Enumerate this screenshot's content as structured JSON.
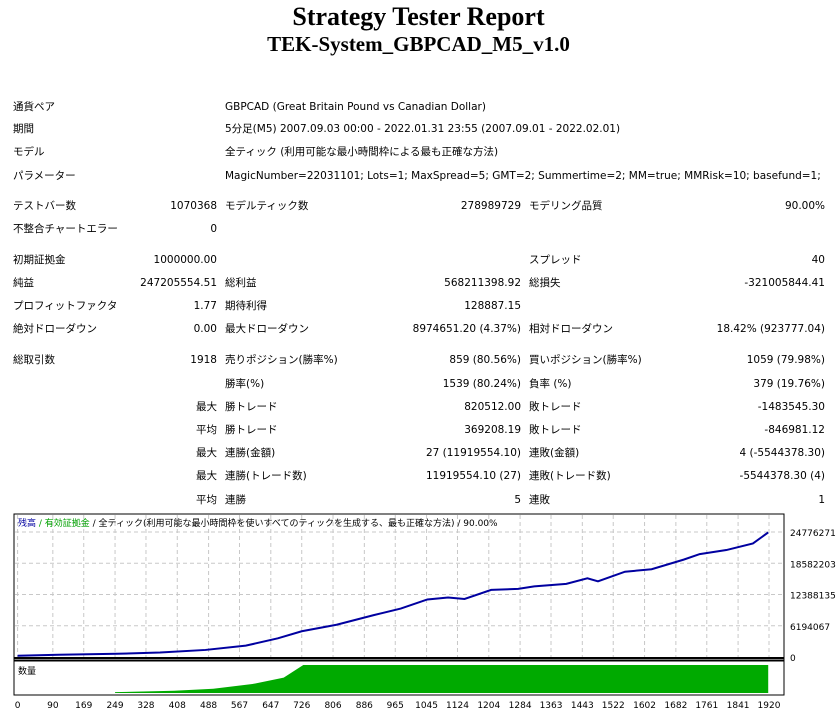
{
  "header": {
    "title": "Strategy Tester Report",
    "subtitle": "TEK-System_GBPCAD_M5_v1.0"
  },
  "info": [
    {
      "label": "通貨ペア",
      "value": "GBPCAD (Great Britain Pound vs Canadian Dollar)"
    },
    {
      "label": "期間",
      "value": "5分足(M5) 2007.09.03 00:00 - 2022.01.31 23:55 (2007.09.01 - 2022.02.01)"
    },
    {
      "label": "モデル",
      "value": "全ティック (利用可能な最小時間枠による最も正確な方法)"
    },
    {
      "label": "パラメーター",
      "value": "MagicNumber=22031101; Lots=1; MaxSpread=5; GMT=2; Summertime=2; MM=true; MMRisk=10; basefund=1;"
    }
  ],
  "stats": [
    [
      [
        "テストバー数",
        "1070368"
      ],
      [
        "モデルティック数",
        "278989729"
      ],
      [
        "モデリング品質",
        "90.00%"
      ]
    ],
    [
      [
        "不整合チャートエラー",
        "0"
      ],
      null,
      null
    ],
    [
      [
        "初期証拠金",
        "1000000.00"
      ],
      null,
      [
        "スプレッド",
        "40"
      ]
    ],
    [
      [
        "純益",
        "247205554.51"
      ],
      [
        "総利益",
        "568211398.92"
      ],
      [
        "総損失",
        "-321005844.41"
      ]
    ],
    [
      [
        "プロフィットファクタ",
        "1.77"
      ],
      [
        "期待利得",
        "128887.15"
      ],
      null
    ],
    [
      [
        "絶対ドローダウン",
        "0.00"
      ],
      [
        "最大ドローダウン",
        "8974651.20 (4.37%)"
      ],
      [
        "相対ドローダウン",
        "18.42% (923777.04)"
      ]
    ],
    [
      [
        "総取引数",
        "1918"
      ],
      [
        "売りポジション(勝率%)",
        "859 (80.56%)"
      ],
      [
        "買いポジション(勝率%)",
        "1059 (79.98%)"
      ]
    ],
    [
      [
        "",
        "勝率(%)"
      ],
      [
        "",
        "1539 (80.24%)"
      ],
      [
        "負率 (%)",
        "379 (19.76%)"
      ]
    ],
    [
      [
        "",
        "最大"
      ],
      [
        "勝トレード",
        "820512.00"
      ],
      [
        "敗トレード",
        "-1483545.30"
      ]
    ],
    [
      [
        "",
        "平均"
      ],
      [
        "勝トレード",
        "369208.19"
      ],
      [
        "敗トレード",
        "-846981.12"
      ]
    ],
    [
      [
        "",
        "最大"
      ],
      [
        "連勝(金額)",
        "27 (11919554.10)"
      ],
      [
        "連敗(金額)",
        "4 (-5544378.30)"
      ]
    ],
    [
      [
        "",
        "最大"
      ],
      [
        "連勝(トレード数)",
        "11919554.10 (27)"
      ],
      [
        "連敗(トレード数)",
        "-5544378.30 (4)"
      ]
    ],
    [
      [
        "",
        "平均"
      ],
      [
        "連勝",
        "5"
      ],
      [
        "連敗",
        "1"
      ]
    ]
  ],
  "chart_data": {
    "type": "line",
    "legend": [
      "残高",
      "有効証拠金",
      "全ティック(利用可能な最小時間枠を使いすべてのティックを生成する、最も正確な方法)",
      "90.00%"
    ],
    "y_ticks": [
      "24776271",
      "18582203",
      "12388135",
      "6194067",
      "0"
    ],
    "ylim": [
      0,
      24776271
    ],
    "x_ticks": [
      "0",
      "90",
      "169",
      "249",
      "328",
      "408",
      "488",
      "567",
      "647",
      "726",
      "806",
      "886",
      "965",
      "1045",
      "1124",
      "1204",
      "1284",
      "1363",
      "1443",
      "1522",
      "1602",
      "1682",
      "1761",
      "1841",
      "1920"
    ],
    "xlim": [
      0,
      1920
    ],
    "volume_label": "数量",
    "balance": [
      [
        0,
        260000
      ],
      [
        105,
        450000
      ],
      [
        255,
        640000
      ],
      [
        364,
        900000
      ],
      [
        480,
        1400000
      ],
      [
        583,
        2250000
      ],
      [
        665,
        3700000
      ],
      [
        726,
        5100000
      ],
      [
        815,
        6400000
      ],
      [
        910,
        8300000
      ],
      [
        979,
        9600000
      ],
      [
        1047,
        11400000
      ],
      [
        1100,
        11800000
      ],
      [
        1142,
        11500000
      ],
      [
        1210,
        13300000
      ],
      [
        1279,
        13500000
      ],
      [
        1320,
        14000000
      ],
      [
        1402,
        14500000
      ],
      [
        1456,
        15600000
      ],
      [
        1483,
        15000000
      ],
      [
        1552,
        16900000
      ],
      [
        1620,
        17400000
      ],
      [
        1702,
        19300000
      ],
      [
        1743,
        20400000
      ],
      [
        1811,
        21200000
      ],
      [
        1879,
        22500000
      ],
      [
        1918,
        24700000
      ]
    ],
    "volume": [
      [
        249,
        0.03
      ],
      [
        400,
        0.08
      ],
      [
        500,
        0.15
      ],
      [
        600,
        0.32
      ],
      [
        680,
        0.55
      ],
      [
        730,
        1
      ],
      [
        1918,
        1
      ]
    ],
    "colors": {
      "balance": "#0000a0",
      "equity": "#00a000",
      "volume": "#00aa00",
      "grid": "#c8c8c8"
    }
  }
}
